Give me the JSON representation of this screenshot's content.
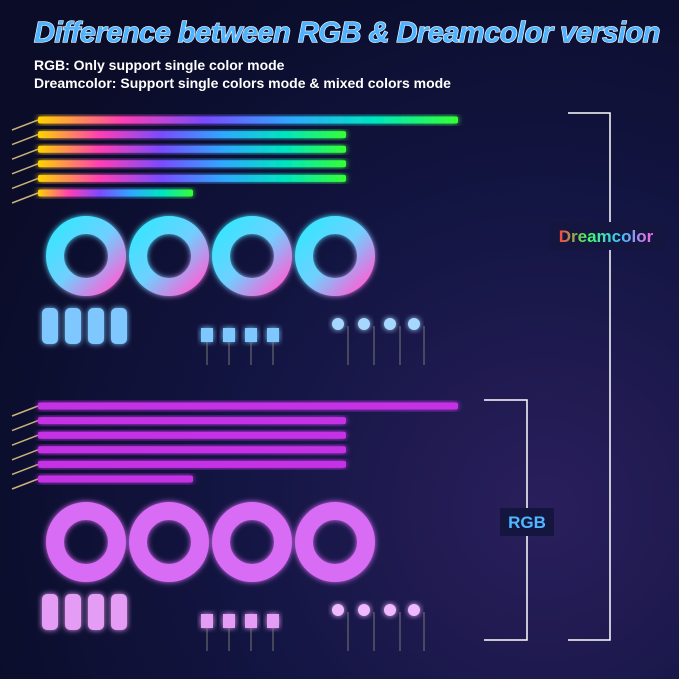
{
  "header": {
    "title": "Difference between RGB & Dreamcolor version",
    "lines": [
      "RGB: Only support single color mode",
      "Dreamcolor: Support single colors mode & mixed colors mode"
    ]
  },
  "labels": {
    "dreamcolor": "Dreamcolor",
    "rgb": "RGB"
  }
}
